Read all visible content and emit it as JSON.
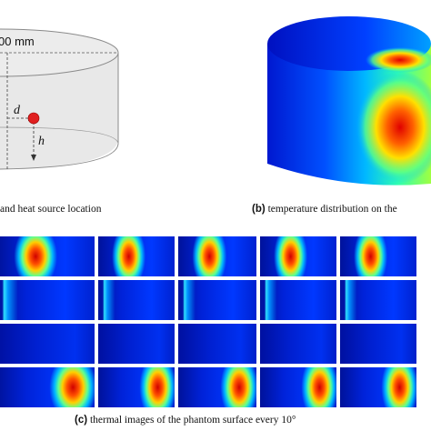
{
  "panel_a": {
    "dimension_label": "00 mm",
    "d_label": "d",
    "h_label": "h",
    "caption_text": "and heat source location"
  },
  "panel_b": {
    "caption_letter": "(b)",
    "caption_text": "temperature distribution on the"
  },
  "panel_c": {
    "caption_letter": "(c)",
    "caption_text": "thermal images of the phantom surface every 10°",
    "rows": [
      [
        "hot-center",
        "hot-center",
        "hot-center",
        "hot-center",
        "hot-center"
      ],
      [
        "cool-edge",
        "cool-edge",
        "cool-edge",
        "cool-edge",
        "cool-edge"
      ],
      [
        "cool",
        "cool",
        "cool",
        "cool",
        "cool"
      ],
      [
        "hot-right",
        "hot-right",
        "hot-right",
        "hot-right",
        "hot-right"
      ]
    ]
  },
  "colors": {
    "heat_source": "#e02020",
    "colormap": [
      "#00008f",
      "#0030ff",
      "#00c0ff",
      "#40ff90",
      "#ffff00",
      "#ff8000",
      "#e00000"
    ]
  }
}
